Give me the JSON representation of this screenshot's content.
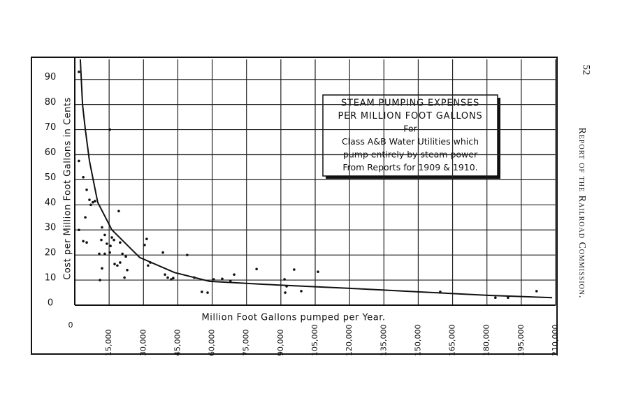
{
  "page": {
    "number": "52",
    "running_head": "Report of the Railroad Commission."
  },
  "chart_data": {
    "type": "scatter",
    "x_label": "Million Foot Gallons pumped per Year.",
    "y_label": "Cost per Million Foot Gallons in Cents",
    "annotation": [
      "STEAM PUMPING EXPENSES",
      "PER MILLION FOOT GALLONS",
      "For",
      "Class A&B Water Utilities which",
      "pump entirely by steam power",
      "From Reports for 1909 & 1910."
    ],
    "xlim": [
      0,
      210000
    ],
    "ylim": [
      0,
      98
    ],
    "xticks": [
      0,
      {
        "value": 15000,
        "label": "15,000"
      },
      {
        "value": 30000,
        "label": "30,000"
      },
      {
        "value": 45000,
        "label": "45,000"
      },
      {
        "value": 60000,
        "label": "60,000"
      },
      {
        "value": 75000,
        "label": "75,000"
      },
      {
        "value": 90000,
        "label": "90,000"
      },
      {
        "value": 105000,
        "label": "105,000"
      },
      {
        "value": 120000,
        "label": "120,000"
      },
      {
        "value": 135000,
        "label": "135,000"
      },
      {
        "value": 150000,
        "label": "150,000"
      },
      {
        "value": 165000,
        "label": "165,000"
      },
      {
        "value": 180000,
        "label": "180,000"
      },
      {
        "value": 195000,
        "label": "195,000"
      },
      {
        "value": 210000,
        "label": "210,000"
      }
    ],
    "yticks": [
      0,
      10,
      20,
      30,
      40,
      50,
      60,
      70,
      80,
      90
    ],
    "grid": true,
    "series": [
      {
        "mode": "markers",
        "color": "#111",
        "x": [
          1800,
          1800,
          3700,
          5200,
          6400,
          7900,
          8800,
          7000,
          4600,
          1800,
          3700,
          5200,
          11900,
          13100,
          11600,
          14000,
          10700,
          13100,
          11900,
          11000,
          15300,
          16200,
          17100,
          15600,
          15300,
          17400,
          18600,
          19800,
          19800,
          19200,
          20800,
          22300,
          21700,
          22900,
          30500,
          31400,
          32000,
          33000,
          38500,
          39400,
          40600,
          42100,
          43000,
          49100,
          52200,
          55500,
          58000,
          60700,
          64400,
          68000,
          69600,
          79400,
          91600,
          91900,
          92500,
          95800,
          98900,
          106200,
          159600,
          183700,
          189200,
          201700
        ],
        "values": [
          93,
          57.5,
          51,
          46,
          42,
          41,
          41.5,
          40,
          35,
          30,
          25.5,
          25,
          31,
          28,
          26,
          24.5,
          20.5,
          20.5,
          14.7,
          10,
          70,
          27,
          26,
          23.6,
          21,
          16.4,
          15.8,
          17,
          25,
          37.5,
          20.5,
          19.4,
          11,
          14,
          24,
          26.4,
          15.8,
          17,
          21,
          12.2,
          11,
          10.3,
          10.8,
          20,
          11,
          5.3,
          5,
          10.3,
          10.5,
          9.7,
          12.2,
          14.4,
          10.3,
          5,
          7.5,
          14.2,
          5.6,
          13.3,
          5.3,
          3,
          3,
          5.6
        ]
      },
      {
        "mode": "line",
        "color": "#111",
        "x": [
          2400,
          3400,
          4600,
          6400,
          10000,
          16200,
          28400,
          43600,
          58900,
          89400,
          120000,
          150500,
          181000,
          208500
        ],
        "values": [
          98,
          80,
          70,
          57.5,
          41,
          30,
          19,
          13,
          9.5,
          8,
          6.7,
          5.3,
          3.9,
          3
        ]
      }
    ]
  }
}
